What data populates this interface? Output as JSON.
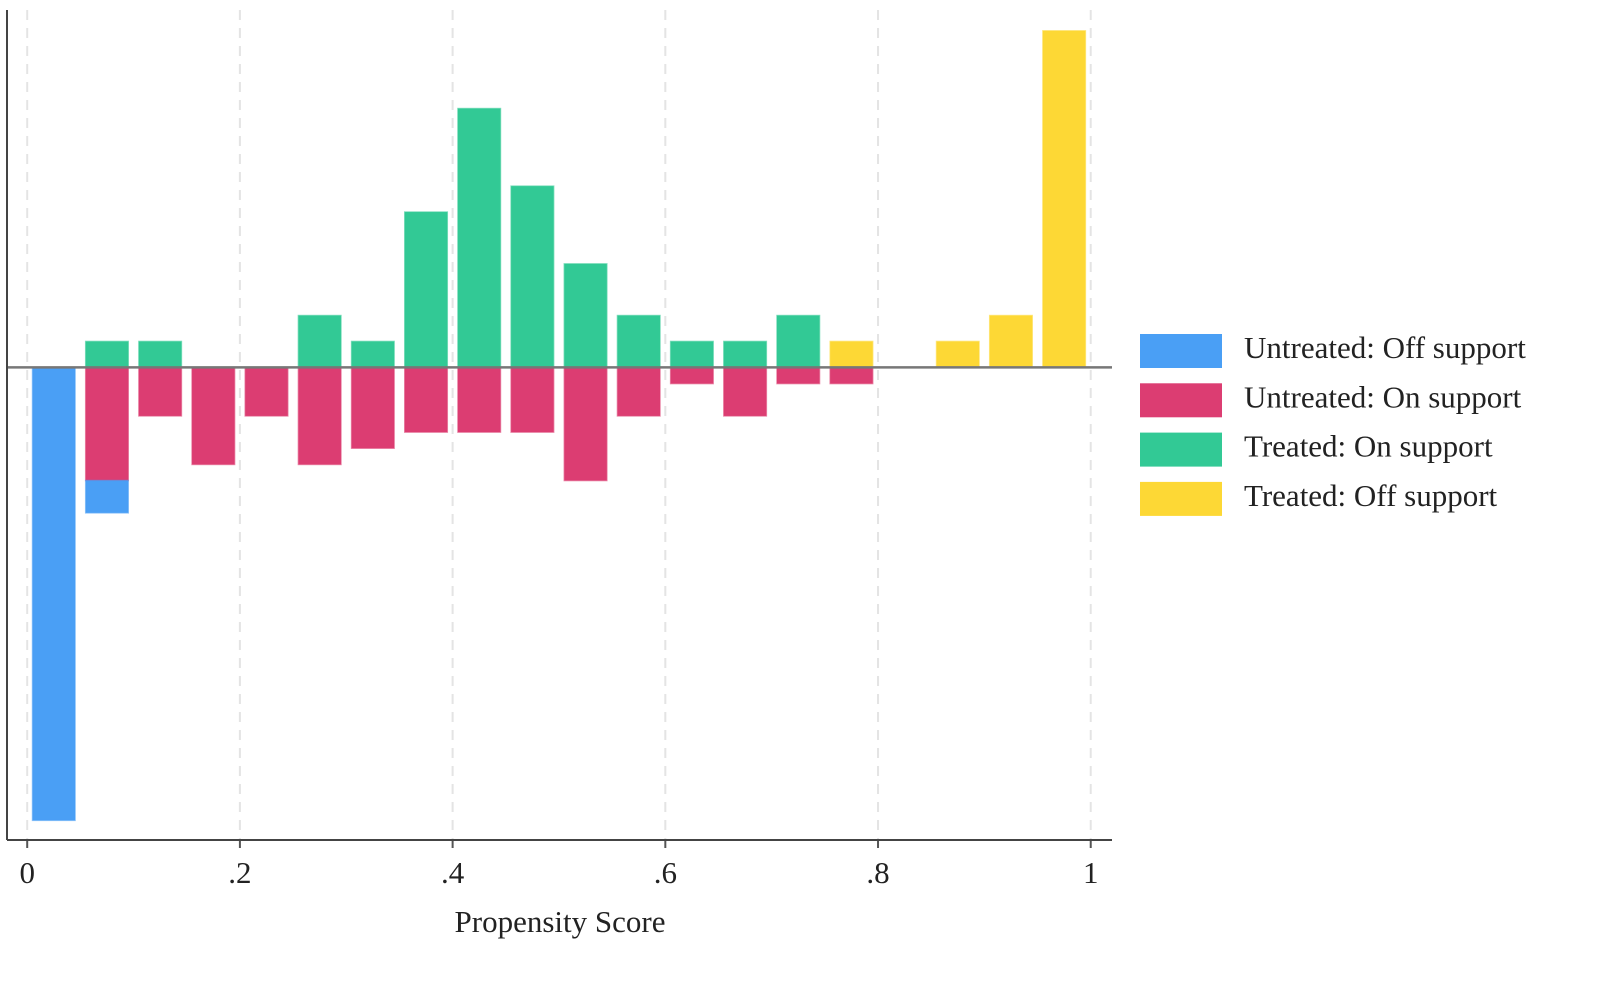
{
  "chart_data": {
    "type": "bar",
    "x_label": "Propensity Score",
    "x": [
      0.025,
      0.075,
      0.125,
      0.175,
      0.225,
      0.275,
      0.325,
      0.375,
      0.425,
      0.475,
      0.525,
      0.575,
      0.625,
      0.675,
      0.725,
      0.775,
      0.825,
      0.875,
      0.925,
      0.975
    ],
    "series": [
      {
        "name": "Untreated: Off support",
        "color": "#4a9ff5",
        "values": [
          -31.82,
          -2.27,
          null,
          null,
          null,
          null,
          null,
          null,
          null,
          null,
          null,
          null,
          null,
          null,
          null,
          null,
          null,
          null,
          null,
          null
        ]
      },
      {
        "name": "Untreated: On support",
        "color": "#dc3d72",
        "values": [
          null,
          -7.95,
          -3.41,
          -6.82,
          -3.41,
          -6.82,
          -5.68,
          -4.55,
          -4.55,
          -4.55,
          -7.95,
          -3.41,
          -1.14,
          -3.41,
          -1.14,
          -1.14,
          null,
          null,
          null,
          null
        ]
      },
      {
        "name": "Treated: On support",
        "color": "#32c995",
        "values": [
          null,
          1.82,
          1.82,
          null,
          null,
          3.64,
          1.82,
          10.91,
          18.18,
          12.73,
          7.27,
          3.64,
          1.82,
          1.82,
          3.64,
          null,
          null,
          null,
          null,
          null
        ]
      },
      {
        "name": "Treated: Off support",
        "color": "#fdd835",
        "values": [
          null,
          null,
          null,
          null,
          null,
          null,
          null,
          null,
          null,
          null,
          null,
          null,
          null,
          null,
          null,
          1.82,
          null,
          1.82,
          3.64,
          23.64
        ]
      }
    ],
    "xlim": [
      -0.019,
      1.02
    ],
    "xticks": [
      0,
      {
        "value": 0.2,
        "label": ".2"
      },
      {
        "value": 0.4,
        "label": ".4"
      },
      {
        "value": 0.6,
        "label": ".6"
      },
      {
        "value": 0.8,
        "label": ".8"
      },
      1
    ],
    "ylim": [
      -33.2,
      24.4
    ],
    "grid": true,
    "legend": "right"
  }
}
